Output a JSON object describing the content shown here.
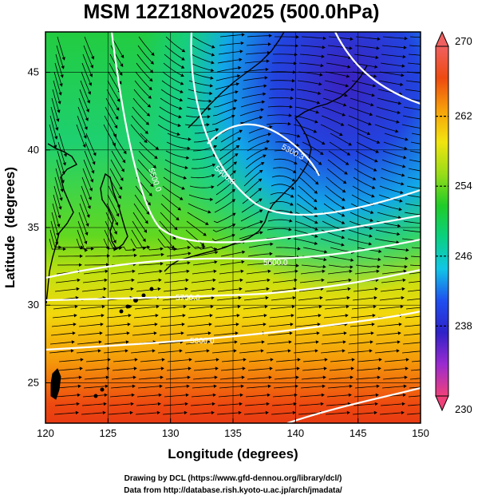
{
  "map": {
    "title": "MSM 12Z18Nov2025 (500.0hPa)",
    "xlabel": "Longitude (degrees)",
    "ylabel": "Latitude  (degrees)",
    "lon_range": [
      120,
      150
    ],
    "lat_range": [
      22.4,
      47.6
    ],
    "lon_ticks": [
      "120",
      "125",
      "130",
      "135",
      "140",
      "145",
      "150"
    ],
    "lat_ticks": [
      "25",
      "30",
      "35",
      "40",
      "45"
    ],
    "projection": "equirectangular",
    "field": "temperature (color shading) with wind streamlines and geopotential height contours",
    "colorbar": {
      "min": 230,
      "max": 270,
      "labels": [
        "270",
        "262",
        "254",
        "246",
        "238",
        "230"
      ],
      "colors": [
        "#f0407a",
        "#9a2ad0",
        "#2e22c8",
        "#1f4ff0",
        "#11c6e6",
        "#0ad080",
        "#20cc28",
        "#9adc18",
        "#f2e410",
        "#f7a00a",
        "#ee4a10",
        "#f06060"
      ],
      "extend": "both"
    },
    "contours": [
      {
        "label": "5300.3"
      },
      {
        "label": "5400.0"
      },
      {
        "label": "5500.0"
      },
      {
        "label": "5600.0"
      },
      {
        "label": "5700.0"
      },
      {
        "label": "5800.0"
      }
    ],
    "credits": {
      "line1": "Drawing by DCL (https://www.gfd-dennou.org/library/dcl/)",
      "line2": "Data from http://database.rish.kyoto-u.ac.jp/arch/jmadata/"
    }
  }
}
